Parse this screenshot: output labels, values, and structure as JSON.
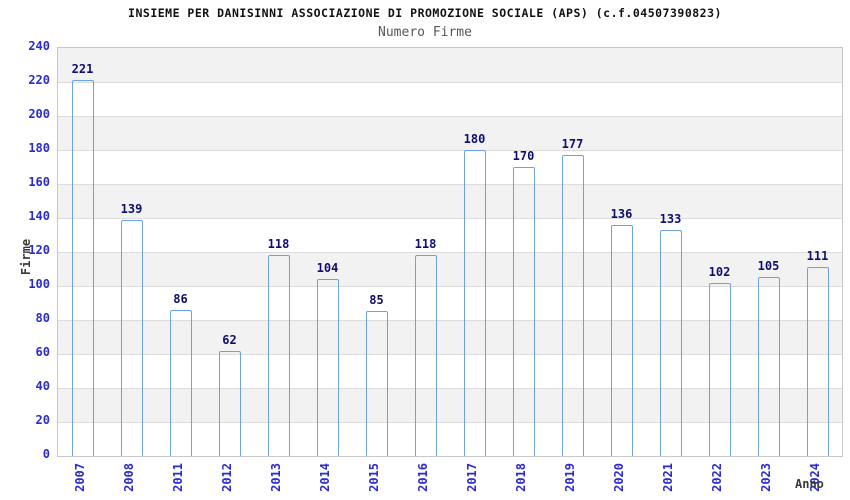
{
  "header": {
    "title": "INSIEME PER DANISINNI ASSOCIAZIONE DI PROMOZIONE SOCIALE (APS) (c.f.04507390823)",
    "subtitle": "Numero Firme"
  },
  "chart_data": {
    "type": "bar",
    "title": "INSIEME PER DANISINNI ASSOCIAZIONE DI PROMOZIONE SOCIALE (APS) (c.f.04507390823)",
    "subtitle": "Numero Firme",
    "categories": [
      "2007",
      "2008",
      "2011",
      "2012",
      "2013",
      "2014",
      "2015",
      "2016",
      "2017",
      "2018",
      "2019",
      "2020",
      "2021",
      "2022",
      "2023",
      "2024"
    ],
    "values": [
      221,
      139,
      86,
      62,
      118,
      104,
      85,
      118,
      180,
      170,
      177,
      136,
      133,
      102,
      105,
      111
    ],
    "xlabel": "Anno",
    "ylabel": "Firme",
    "ylim": [
      0,
      240
    ],
    "ytick_step": 20,
    "ytick_labels": [
      "0",
      "20",
      "40",
      "60",
      "80",
      "100",
      "120",
      "140",
      "160",
      "180",
      "200",
      "220",
      "240"
    ],
    "grid": "horizontal-bands-alternating",
    "legend": "none",
    "bar_value_labels_shown": true,
    "colors": {
      "bar_edge": "#141480",
      "bar_center": "#adb2d9",
      "bar_outline": "#6aa3e4",
      "tick_label": "#2a2ad0",
      "value_label": "#0e0e72",
      "band_gray": "#f2f2f2",
      "band_white": "#ffffff",
      "grid_line": "#dcdcdc",
      "plot_border": "#c8c8c8",
      "title_color": "#111111",
      "subtitle_color": "#585858",
      "axis_title_color": "#3a3a3a"
    }
  }
}
